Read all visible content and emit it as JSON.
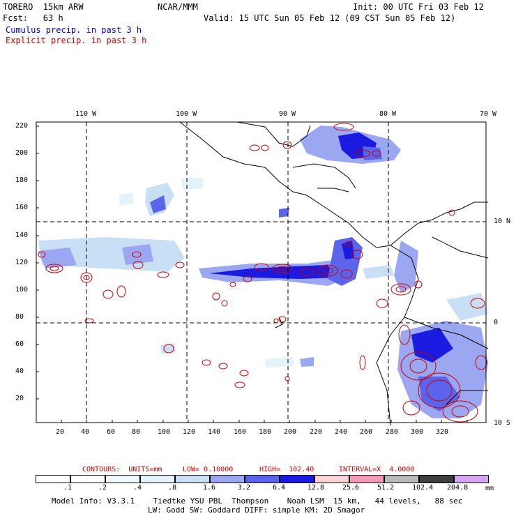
{
  "header": {
    "model": "TORERO  15km ARW",
    "center": "NCAR/MMM",
    "init": "Init: 00 UTC Fri 03 Feb 12",
    "fcst": "Fcst:   63 h",
    "valid": "Valid: 15 UTC Sun 05 Feb 12 (09 CST Sun 05 Feb 12)",
    "field1": "Cumulus precip. in past 3 h",
    "field2": "Explicit precip. in past 3 h"
  },
  "axes": {
    "lon_labels": [
      "110 W",
      "100 W",
      "90 W",
      "80 W",
      "70 W"
    ],
    "lat_labels": [
      "10 N",
      "0",
      "10 S"
    ],
    "x_ticks": [
      "20",
      "40",
      "60",
      "80",
      "100",
      "120",
      "140",
      "160",
      "180",
      "200",
      "220",
      "240",
      "260",
      "280",
      "300",
      "320"
    ],
    "y_ticks": [
      "220",
      "200",
      "180",
      "160",
      "140",
      "120",
      "100",
      "80",
      "60",
      "40",
      "20"
    ]
  },
  "contour_info": {
    "contours": "CONTOURS:  UNITS=mm",
    "low": "LOW= 0.10000",
    "high": "HIGH=  102.40",
    "interval": "INTERVAL=X  4.0000"
  },
  "legend": {
    "labels": [
      ".1",
      ".2",
      ".4",
      ".8",
      "1.6",
      "3.2",
      "6.4",
      "12.8",
      "25.6",
      "51.2",
      "102.4",
      "204.8"
    ],
    "unit": "mm",
    "colors": [
      "#ffffff",
      "#ffffff",
      "#eef8fb",
      "#e2f4f9",
      "#c9dff5",
      "#9ba7f0",
      "#5b64ea",
      "#1a1ae0",
      "#fbd3d8",
      "#f49ab9",
      "#b9b9b9",
      "#3f3f3f",
      "#d7a6f3"
    ]
  },
  "footer": {
    "line1": "Model Info: V3.3.1    Tiedtke YSU PBL  Thompson    Noah LSM  15 km,   44 levels,   88 sec",
    "line2": "LW: Godd SW: Goddard DIFF: simple KM: 2D Smagor"
  },
  "colors": {
    "cumulus": "#0000cc",
    "explicit": "#cc0000"
  }
}
